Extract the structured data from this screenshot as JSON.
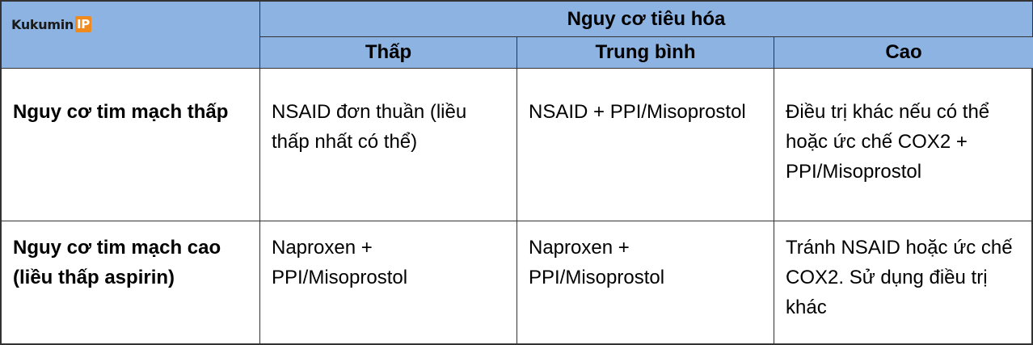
{
  "logo": {
    "text": "Kukumin",
    "badge": "IP"
  },
  "table": {
    "group_header": "Nguy cơ tiêu hóa",
    "columns": [
      "Thấp",
      "Trung bình",
      "Cao"
    ],
    "rows": [
      {
        "label": "Nguy cơ tim mạch thấp",
        "cells": [
          "NSAID đơn thuần (liều thấp nhất có thể)",
          "NSAID + PPI/Misoprostol",
          "Điều trị khác nếu có thể hoặc ức chế COX2 + PPI/Misoprostol"
        ]
      },
      {
        "label": "Nguy cơ tim mạch cao (liều thấp aspirin)",
        "cells": [
          "Naproxen + PPI/Misoprostol",
          "Naproxen + PPI/Misoprostol",
          "Tránh NSAID hoặc ức chế COX2. Sử dụng điều trị khác"
        ]
      }
    ]
  },
  "colors": {
    "header_bg": "#8db3e2",
    "border": "#333333",
    "logo_badge": "#f08a1c"
  }
}
